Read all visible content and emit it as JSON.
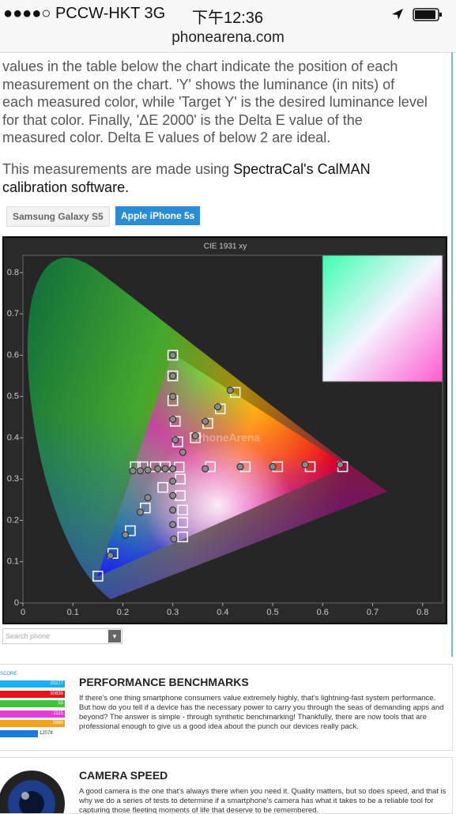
{
  "status_bar": {
    "carrier": "●●●●○ PCCW-HKT  3G",
    "time": "下午12:36",
    "url": "phonearena.com"
  },
  "article": {
    "paragraph": "values in the table below the chart indicate the position of each measurement on the chart. 'Y' shows the luminance (in nits) of each measured color, while 'Target Y' is the desired luminance level for that color. Finally, 'ΔE 2000' is the Delta E value of the measured color. Delta E values of below 2 are ideal.",
    "lead": "This measurements are made using ",
    "link": "SpectraCal's CalMAN calibration software."
  },
  "tabs": [
    "Samsung Galaxy S5",
    "Apple iPhone 5s"
  ],
  "chart_data": {
    "type": "scatter",
    "title": "CIE 1931 xy",
    "watermark": "PhoneArena",
    "xlim": [
      0,
      0.84
    ],
    "ylim": [
      0,
      0.842
    ],
    "xticks": [
      0,
      0.1,
      0.2,
      0.3,
      0.4,
      0.5,
      0.6,
      0.7,
      0.8
    ],
    "yticks": [
      0,
      0.1,
      0.2,
      0.3,
      0.4,
      0.5,
      0.6,
      0.7,
      0.8
    ],
    "series": [
      {
        "marker": "square",
        "color": "#ffffff",
        "x": [
          0.3,
          0.3,
          0.3,
          0.305,
          0.31,
          0.3127,
          0.225,
          0.24,
          0.265,
          0.285,
          0.375,
          0.445,
          0.51,
          0.575,
          0.64,
          0.15,
          0.18,
          0.215,
          0.245,
          0.28,
          0.315,
          0.315,
          0.32,
          0.32,
          0.32,
          0.425,
          0.395,
          0.37,
          0.345
        ],
        "y": [
          0.6,
          0.55,
          0.49,
          0.44,
          0.39,
          0.329,
          0.33,
          0.33,
          0.33,
          0.33,
          0.33,
          0.33,
          0.33,
          0.33,
          0.33,
          0.065,
          0.12,
          0.175,
          0.23,
          0.28,
          0.3,
          0.26,
          0.225,
          0.195,
          0.16,
          0.51,
          0.47,
          0.435,
          0.4
        ]
      },
      {
        "marker": "circle",
        "color": "#8a8a8a",
        "x": [
          0.3,
          0.3,
          0.3,
          0.3,
          0.305,
          0.22,
          0.235,
          0.25,
          0.27,
          0.285,
          0.3,
          0.365,
          0.435,
          0.5,
          0.565,
          0.635,
          0.25,
          0.235,
          0.205,
          0.175,
          0.3,
          0.3,
          0.3,
          0.3,
          0.302,
          0.415,
          0.39,
          0.365,
          0.345,
          0.32
        ],
        "y": [
          0.6,
          0.55,
          0.5,
          0.445,
          0.395,
          0.32,
          0.32,
          0.322,
          0.325,
          0.325,
          0.325,
          0.325,
          0.33,
          0.33,
          0.335,
          0.335,
          0.255,
          0.22,
          0.165,
          0.115,
          0.295,
          0.26,
          0.225,
          0.19,
          0.155,
          0.515,
          0.475,
          0.44,
          0.405,
          0.365
        ]
      }
    ]
  },
  "search": "Search phone",
  "cards": [
    {
      "title": "PERFORMANCE BENCHMARKS",
      "text": "If there's one thing smartphone consumers value extremely highly, that's lightning-fast system performance. But how do you tell if a device has the necessary power to carry you through the seas of demanding apps and beyond? The answer is simple - through synthetic benchmarking! Thankfully, there are now tools that are professional enough to give us a good idea about the punch our devices really pack.",
      "score_label": "SCORE",
      "scores": [
        20277,
        30838,
        53,
        1115,
        2889,
        12078
      ]
    },
    {
      "title": "CAMERA SPEED",
      "text": "A good camera is the one that's always there when you need it. Quality matters, but so does speed, and that is why we do a series of tests to determine if a smartphone's camera has what it takes to be a reliable tool for capturing those fleeting moments of life that deserve to be remembered."
    }
  ]
}
